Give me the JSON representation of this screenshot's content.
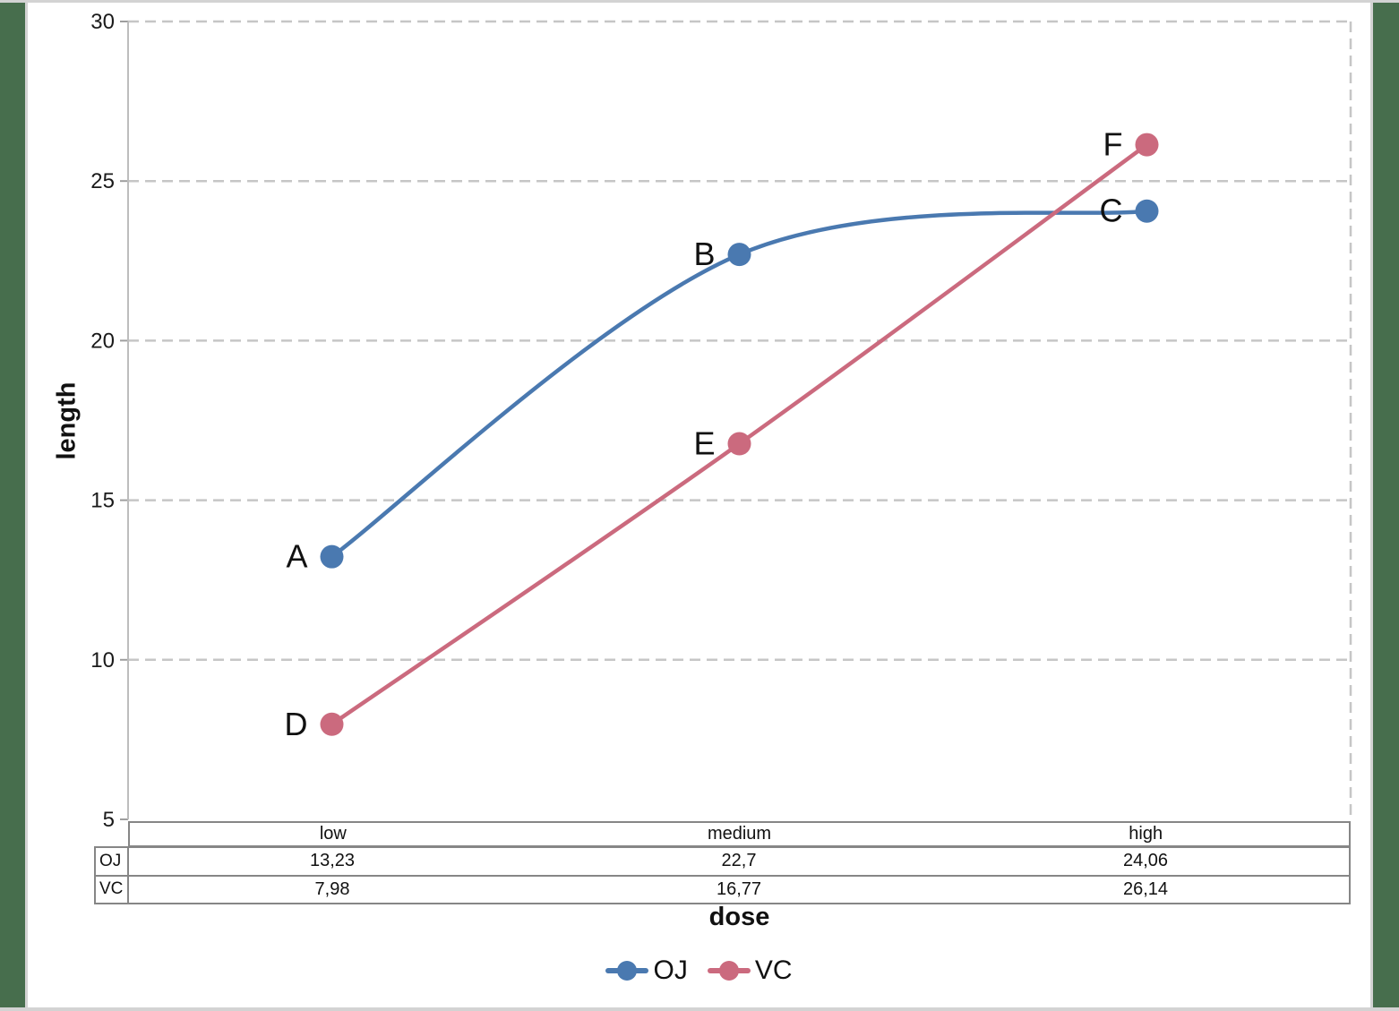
{
  "frame": {
    "side_bar_color": "#476e4d",
    "border_strip_color": "#d3d3d3",
    "surface_color": "#ffffff"
  },
  "chart_data": {
    "type": "line",
    "title": "",
    "categories": [
      "low",
      "medium",
      "high"
    ],
    "series": [
      {
        "name": "OJ",
        "values": [
          13.23,
          22.7,
          24.06
        ],
        "color": "#4a79b0",
        "point_labels": [
          "A",
          "B",
          "C"
        ]
      },
      {
        "name": "VC",
        "values": [
          7.98,
          16.77,
          26.14
        ],
        "color": "#cb6a7e",
        "point_labels": [
          "D",
          "E",
          "F"
        ]
      }
    ],
    "xlabel": "dose",
    "ylabel": "length",
    "ylim": [
      5,
      30
    ],
    "yticks": [
      5,
      10,
      15,
      20,
      25,
      30
    ],
    "grid": "horizontal-dashed",
    "smoothed_lines": true,
    "legend_position": "bottom",
    "grid_color": "#c6c6c6",
    "axis_color": "#bdbdbd",
    "tick_color": "#9e9e9e",
    "tick_text_color": "#1a1a1a",
    "point_label_color": "#111111"
  },
  "table": {
    "border_color": "#868686",
    "rows": [
      {
        "label": "OJ",
        "values": [
          "13,23",
          "22,7",
          "24,06"
        ]
      },
      {
        "label": "VC",
        "values": [
          "7,98",
          "16,77",
          "26,14"
        ]
      }
    ]
  }
}
